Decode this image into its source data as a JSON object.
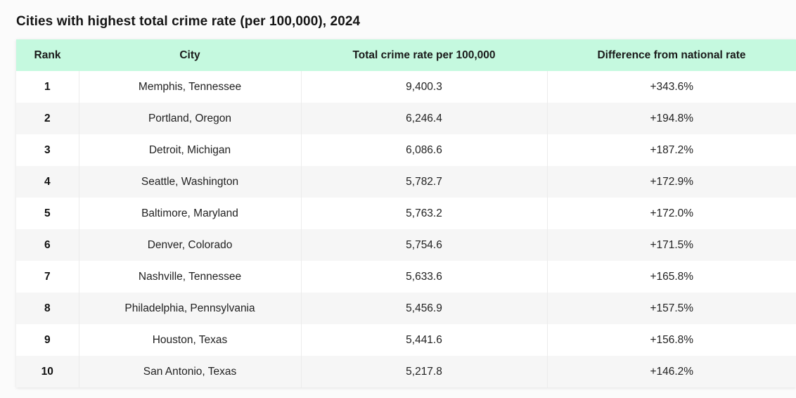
{
  "title": "Cities with highest total crime rate (per 100,000), 2024",
  "colors": {
    "header_bg": "#c5f9df",
    "row_alt_bg": "#f6f6f6",
    "row_bg": "#ffffff"
  },
  "table": {
    "headers": [
      "Rank",
      "City",
      "Total crime rate per 100,000",
      "Difference from national rate"
    ],
    "rows": [
      {
        "rank": "1",
        "city": "Memphis, Tennessee",
        "rate": "9,400.3",
        "diff": "+343.6%"
      },
      {
        "rank": "2",
        "city": "Portland, Oregon",
        "rate": "6,246.4",
        "diff": "+194.8%"
      },
      {
        "rank": "3",
        "city": "Detroit, Michigan",
        "rate": "6,086.6",
        "diff": "+187.2%"
      },
      {
        "rank": "4",
        "city": "Seattle, Washington",
        "rate": "5,782.7",
        "diff": "+172.9%"
      },
      {
        "rank": "5",
        "city": "Baltimore, Maryland",
        "rate": "5,763.2",
        "diff": "+172.0%"
      },
      {
        "rank": "6",
        "city": "Denver, Colorado",
        "rate": "5,754.6",
        "diff": "+171.5%"
      },
      {
        "rank": "7",
        "city": "Nashville, Tennessee",
        "rate": "5,633.6",
        "diff": "+165.8%"
      },
      {
        "rank": "8",
        "city": "Philadelphia, Pennsylvania",
        "rate": "5,456.9",
        "diff": "+157.5%"
      },
      {
        "rank": "9",
        "city": "Houston, Texas",
        "rate": "5,441.6",
        "diff": "+156.8%"
      },
      {
        "rank": "10",
        "city": "San Antonio, Texas",
        "rate": "5,217.8",
        "diff": "+146.2%"
      }
    ]
  }
}
